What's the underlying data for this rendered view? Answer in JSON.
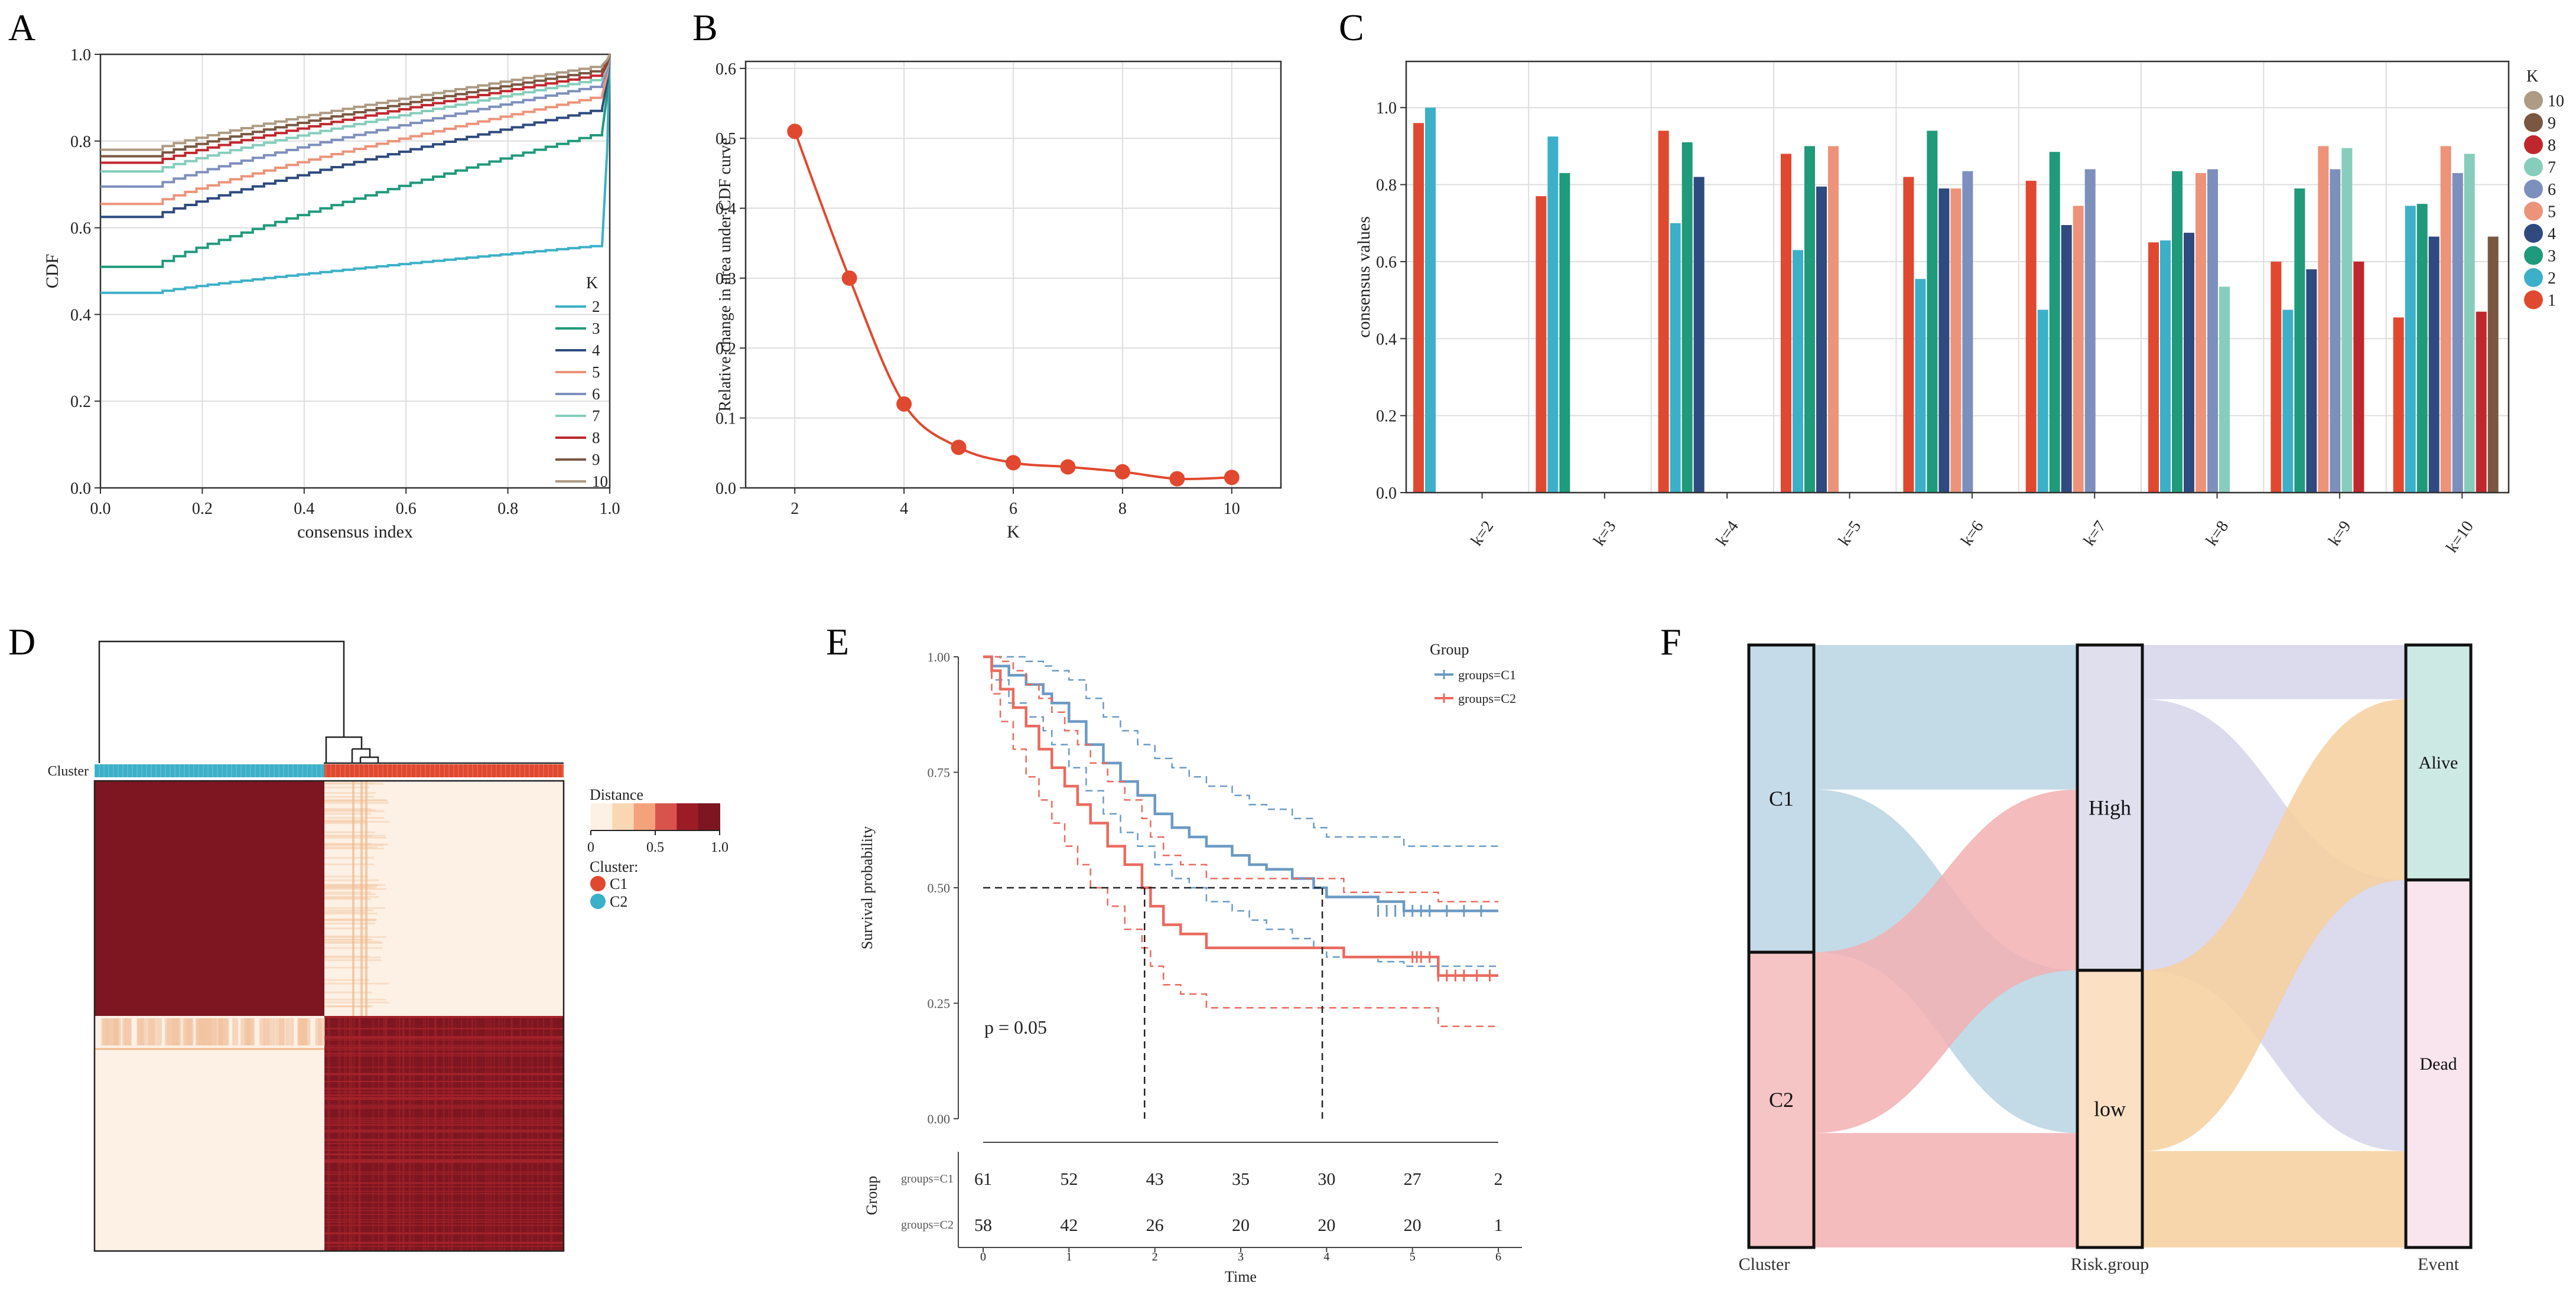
{
  "colors": {
    "k2": "#3cb0c8",
    "k3": "#1f9a7a",
    "k4": "#2e4a7e",
    "k5": "#ec937a",
    "k6": "#7d8fbd",
    "k7": "#86cdbb",
    "k8": "#c0272d",
    "k9": "#7a5741",
    "k10": "#ad9b83",
    "red": "#e0492f",
    "heat_dark": "#7d1620",
    "heat_light": "#fdf1e6",
    "surv_c1": "#6b9ac4",
    "surv_c2": "#ea6a5e",
    "sankey_c1": "#c5dbe9",
    "sankey_c2": "#f5c4c5",
    "sankey_high": "#e0dfee",
    "sankey_low": "#fbe0c3",
    "sankey_alive": "#cde9e4",
    "sankey_dead": "#f8e5ee",
    "flow_c1": "#b9d3e3",
    "flow_c2": "#f2b0b2",
    "flow_high": "#d6d4ea",
    "flow_low": "#f7cf9c"
  },
  "chart_data": [
    {
      "panel": "A",
      "type": "line",
      "title": "",
      "xlabel": "consensus index",
      "ylabel": "CDF",
      "xlim": [
        0,
        1
      ],
      "ylim": [
        0,
        1
      ],
      "xticks": [
        "0.0",
        "0.2",
        "0.4",
        "0.6",
        "0.8",
        "1.0"
      ],
      "yticks": [
        "0.0",
        "0.2",
        "0.4",
        "0.6",
        "0.8",
        "1.0"
      ],
      "legend_title": "K",
      "series": [
        {
          "name": "2",
          "color_key": "k2",
          "start": 0.45,
          "end": 0.56
        },
        {
          "name": "3",
          "color_key": "k3",
          "start": 0.51,
          "end": 0.82
        },
        {
          "name": "4",
          "color_key": "k4",
          "start": 0.625,
          "end": 0.875
        },
        {
          "name": "5",
          "color_key": "k5",
          "start": 0.655,
          "end": 0.905
        },
        {
          "name": "6",
          "color_key": "k6",
          "start": 0.695,
          "end": 0.93
        },
        {
          "name": "7",
          "color_key": "k7",
          "start": 0.73,
          "end": 0.945
        },
        {
          "name": "8",
          "color_key": "k8",
          "start": 0.75,
          "end": 0.955
        },
        {
          "name": "9",
          "color_key": "k9",
          "start": 0.765,
          "end": 0.965
        },
        {
          "name": "10",
          "color_key": "k10",
          "start": 0.78,
          "end": 0.975
        }
      ]
    },
    {
      "panel": "B",
      "type": "line",
      "title": "",
      "xlabel": "K",
      "ylabel": "Relative change in area under CDF curve",
      "x": [
        2,
        3,
        4,
        5,
        6,
        7,
        8,
        9,
        10
      ],
      "y": [
        0.51,
        0.3,
        0.12,
        0.058,
        0.036,
        0.03,
        0.023,
        0.013,
        0.015
      ],
      "xlim": [
        1.1,
        10.9
      ],
      "ylim": [
        0,
        0.61
      ],
      "xticks": [
        "2",
        "4",
        "6",
        "8",
        "10"
      ],
      "yticks": [
        "0.0",
        "0.1",
        "0.2",
        "0.3",
        "0.4",
        "0.5",
        "0.6"
      ]
    },
    {
      "panel": "C",
      "type": "bar",
      "title": "",
      "ylabel": "consensus values",
      "ylim": [
        0,
        1.12
      ],
      "yticks": [
        "0.0",
        "0.2",
        "0.4",
        "0.6",
        "0.8",
        "1.0"
      ],
      "categories": [
        "k=2",
        "k=3",
        "k=4",
        "k=5",
        "k=6",
        "k=7",
        "k=8",
        "k=9",
        "k=10"
      ],
      "legend_title": "K",
      "legend": [
        {
          "name": "10",
          "color_key": "k10"
        },
        {
          "name": "9",
          "color_key": "k9"
        },
        {
          "name": "8",
          "color_key": "k8"
        },
        {
          "name": "7",
          "color_key": "k7"
        },
        {
          "name": "6",
          "color_key": "k6"
        },
        {
          "name": "5",
          "color_key": "k5"
        },
        {
          "name": "4",
          "color_key": "k4"
        },
        {
          "name": "3",
          "color_key": "k3"
        },
        {
          "name": "2",
          "color_key": "k2"
        },
        {
          "name": "1",
          "color_key": "red"
        }
      ],
      "bar_colors": [
        "red",
        "k2",
        "k3",
        "k4",
        "k5",
        "k6",
        "k7",
        "k8",
        "k9",
        "k10"
      ],
      "series_values": [
        [
          0.96,
          1.0
        ],
        [
          0.77,
          0.925,
          0.83
        ],
        [
          0.94,
          0.7,
          0.91,
          0.82
        ],
        [
          0.88,
          0.63,
          0.9,
          0.795,
          0.9
        ],
        [
          0.82,
          0.555,
          0.94,
          0.79,
          0.79,
          0.835
        ],
        [
          0.81,
          0.475,
          0.885,
          0.695,
          0.745,
          0.84,
          0.0
        ],
        [
          0.65,
          0.655,
          0.835,
          0.675,
          0.83,
          0.84,
          0.535,
          0.0
        ],
        [
          0.6,
          0.475,
          0.79,
          0.58,
          0.9,
          0.84,
          0.895,
          0.6,
          0.0
        ],
        [
          0.455,
          0.745,
          0.75,
          0.665,
          0.9,
          0.83,
          0.88,
          0.47,
          0.665,
          0.0
        ]
      ]
    },
    {
      "panel": "D",
      "type": "heatmap",
      "title": "",
      "row_label": "Cluster",
      "legend_title": "Distance",
      "legend_ticks": [
        "0",
        "0.5",
        "1.0"
      ],
      "cluster_legend_title": "Cluster:",
      "clusters": [
        {
          "name": "C1",
          "color_key": "red"
        },
        {
          "name": "C2",
          "color_key": "k2"
        }
      ],
      "split_fraction": 0.49
    },
    {
      "panel": "E",
      "type": "line",
      "title": "",
      "xlabel": "Time",
      "ylabel": "Survival probability",
      "xlim": [
        0,
        6
      ],
      "ylim": [
        0,
        1
      ],
      "xticks": [
        "0",
        "1",
        "2",
        "3",
        "4",
        "5",
        "6"
      ],
      "yticks": [
        "0.00",
        "0.25",
        "0.50",
        "0.75",
        "1.00"
      ],
      "legend_title": "Group",
      "annotation": "p = 0.05",
      "median_times": [
        1.88,
        3.95
      ],
      "series": [
        {
          "name": "groups=C1",
          "color_key": "surv_c1",
          "x": [
            0,
            0.1,
            0.3,
            0.5,
            0.7,
            0.8,
            1.0,
            1.2,
            1.4,
            1.6,
            1.8,
            2.0,
            2.2,
            2.4,
            2.6,
            2.9,
            3.1,
            3.3,
            3.6,
            3.85,
            4.0,
            4.6,
            4.9,
            6.0
          ],
          "y": [
            1,
            0.98,
            0.96,
            0.94,
            0.92,
            0.9,
            0.86,
            0.81,
            0.77,
            0.73,
            0.7,
            0.66,
            0.63,
            0.61,
            0.59,
            0.57,
            0.55,
            0.54,
            0.52,
            0.5,
            0.48,
            0.47,
            0.45,
            0.45
          ],
          "upper": [
            1,
            1,
            1,
            0.99,
            0.98,
            0.97,
            0.95,
            0.91,
            0.87,
            0.84,
            0.81,
            0.78,
            0.76,
            0.74,
            0.72,
            0.7,
            0.68,
            0.67,
            0.65,
            0.63,
            0.61,
            0.61,
            0.59,
            0.59
          ],
          "lower": [
            1,
            0.95,
            0.9,
            0.87,
            0.84,
            0.81,
            0.76,
            0.71,
            0.66,
            0.62,
            0.59,
            0.55,
            0.52,
            0.5,
            0.47,
            0.45,
            0.43,
            0.41,
            0.39,
            0.37,
            0.35,
            0.34,
            0.33,
            0.33
          ]
        },
        {
          "name": "groups=C2",
          "color_key": "surv_c2",
          "x": [
            0,
            0.1,
            0.2,
            0.35,
            0.5,
            0.65,
            0.8,
            0.95,
            1.1,
            1.25,
            1.45,
            1.65,
            1.85,
            1.95,
            2.1,
            2.3,
            2.6,
            4.2,
            5.0,
            5.3,
            6.0
          ],
          "y": [
            1,
            0.97,
            0.93,
            0.89,
            0.85,
            0.8,
            0.76,
            0.72,
            0.68,
            0.64,
            0.59,
            0.55,
            0.5,
            0.46,
            0.42,
            0.4,
            0.37,
            0.35,
            0.35,
            0.31,
            0.31
          ],
          "upper": [
            1,
            1,
            0.99,
            0.97,
            0.94,
            0.91,
            0.88,
            0.84,
            0.81,
            0.77,
            0.73,
            0.69,
            0.65,
            0.61,
            0.57,
            0.55,
            0.52,
            0.49,
            0.49,
            0.47,
            0.47
          ],
          "lower": [
            1,
            0.92,
            0.86,
            0.8,
            0.74,
            0.69,
            0.64,
            0.59,
            0.55,
            0.5,
            0.46,
            0.41,
            0.37,
            0.33,
            0.29,
            0.27,
            0.24,
            0.24,
            0.24,
            0.2,
            0.2
          ]
        }
      ],
      "risk_table": {
        "ylabel": "Group",
        "times": [
          0,
          1,
          2,
          3,
          4,
          5,
          6
        ],
        "rows": [
          {
            "label": "groups=C1",
            "counts": [
              "61",
              "52",
              "43",
              "35",
              "30",
              "27",
              "2"
            ]
          },
          {
            "label": "groups=C2",
            "counts": [
              "58",
              "42",
              "26",
              "20",
              "20",
              "20",
              "1"
            ]
          }
        ]
      }
    },
    {
      "panel": "F",
      "type": "sankey",
      "title": "",
      "axes": [
        "Cluster",
        "Risk.group",
        "Event"
      ],
      "nodes": [
        {
          "axis": 0,
          "name": "C1",
          "share": 0.51,
          "fill_key": "sankey_c1"
        },
        {
          "axis": 0,
          "name": "C2",
          "share": 0.49,
          "fill_key": "sankey_c2"
        },
        {
          "axis": 1,
          "name": "High",
          "share": 0.54,
          "fill_key": "sankey_high"
        },
        {
          "axis": 1,
          "name": "low",
          "share": 0.46,
          "fill_key": "sankey_low"
        },
        {
          "axis": 2,
          "name": "Alive",
          "share": 0.39,
          "fill_key": "sankey_alive"
        },
        {
          "axis": 2,
          "name": "Dead",
          "share": 0.61,
          "fill_key": "sankey_dead"
        }
      ],
      "flows": [
        {
          "from": "C1",
          "to": "High",
          "share": 0.24,
          "fill_key": "flow_c1"
        },
        {
          "from": "C1",
          "to": "low",
          "share": 0.27,
          "fill_key": "flow_c1"
        },
        {
          "from": "C2",
          "to": "High",
          "share": 0.3,
          "fill_key": "flow_c2"
        },
        {
          "from": "C2",
          "to": "low",
          "share": 0.19,
          "fill_key": "flow_c2"
        },
        {
          "from": "High",
          "to": "Alive",
          "share": 0.09,
          "fill_key": "flow_high"
        },
        {
          "from": "High",
          "to": "Dead",
          "share": 0.45,
          "fill_key": "flow_high"
        },
        {
          "from": "low",
          "to": "Alive",
          "share": 0.3,
          "fill_key": "flow_low"
        },
        {
          "from": "low",
          "to": "Dead",
          "share": 0.16,
          "fill_key": "flow_low"
        }
      ]
    }
  ],
  "panel_letters": [
    "A",
    "B",
    "C",
    "D",
    "E",
    "F"
  ]
}
